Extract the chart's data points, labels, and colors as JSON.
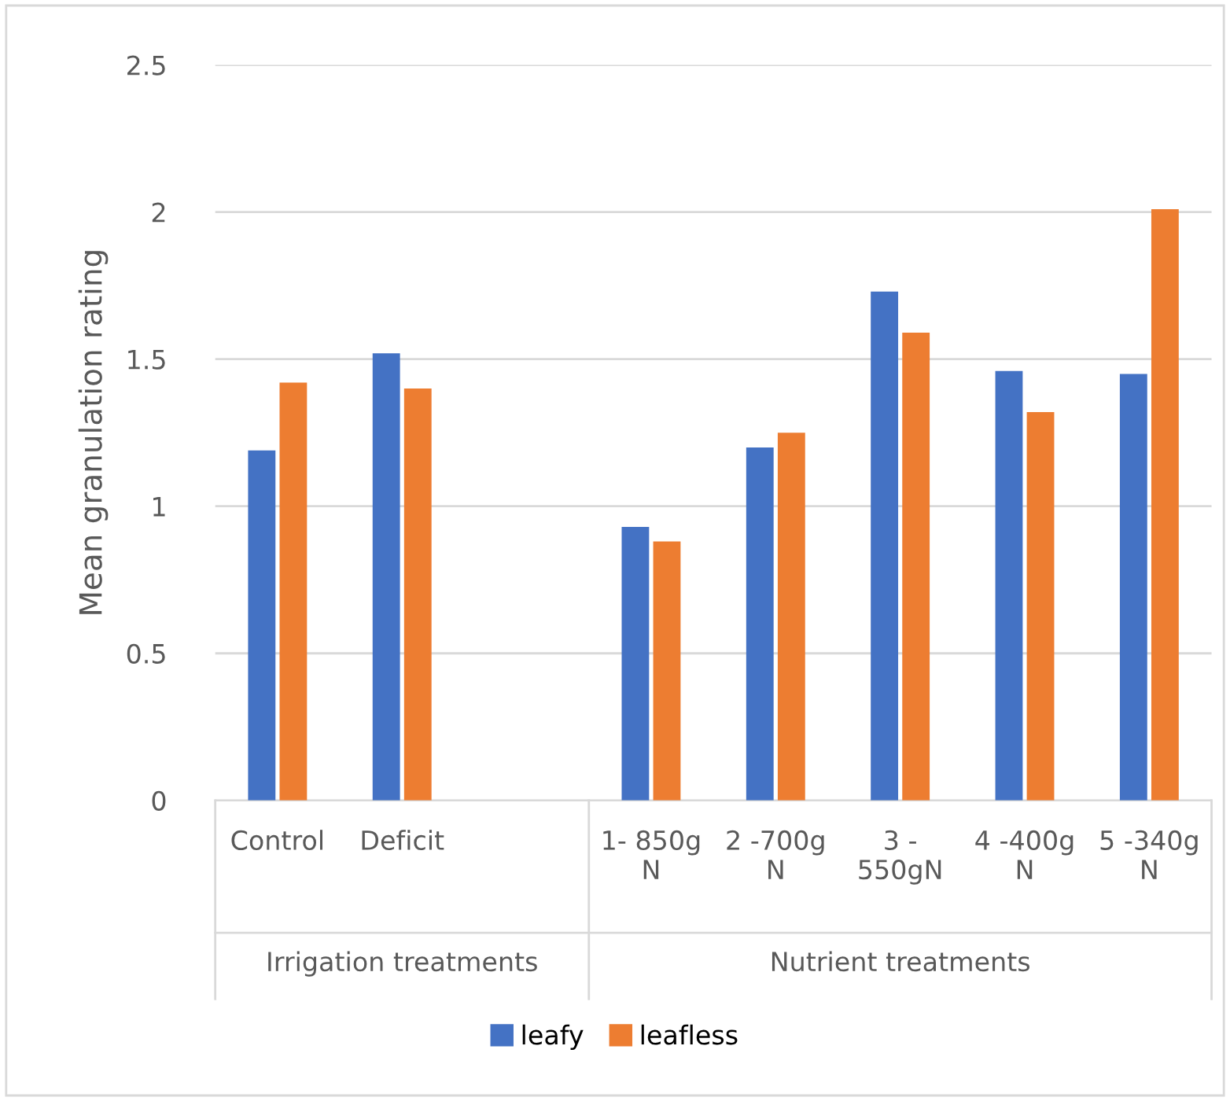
{
  "chart_data": {
    "type": "bar",
    "ylabel": "Mean granulation rating",
    "categories": [
      "Control",
      "Deficit",
      null,
      "1- 850g\nN",
      "2 -700g\nN",
      "3 -\n550gN",
      "4 -400g\nN",
      "5 -340g\nN"
    ],
    "series": [
      {
        "name": "leafy",
        "color": "#4472c4",
        "values": [
          1.19,
          1.52,
          null,
          0.93,
          1.2,
          1.73,
          1.46,
          1.45
        ]
      },
      {
        "name": "leafless",
        "color": "#ed7d31",
        "values": [
          1.42,
          1.4,
          null,
          0.88,
          1.25,
          1.59,
          1.32,
          2.01
        ]
      }
    ],
    "annotations": [
      "Irrigation treatments",
      "Nutrient treatments"
    ],
    "ylim": [
      0,
      2.5
    ],
    "yticks": [
      0,
      0.5,
      1,
      1.5,
      2,
      2.5
    ],
    "grid": "y",
    "legend": "bottom"
  }
}
